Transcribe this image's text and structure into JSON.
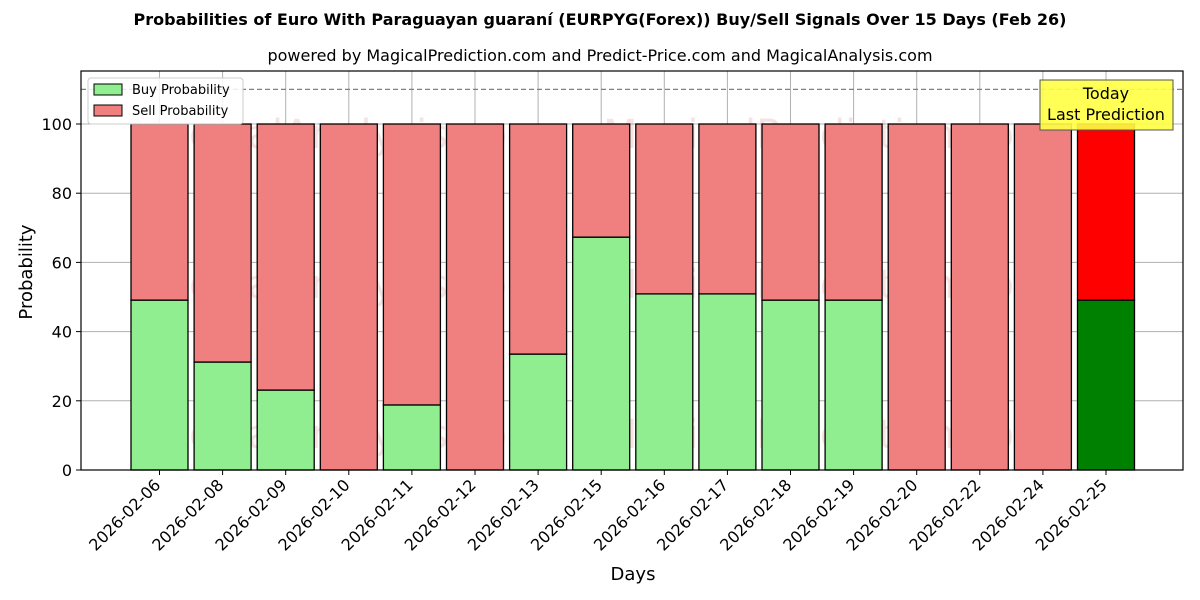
{
  "title": "Probabilities of Euro With Paraguayan guaraní (EURPYG(Forex)) Buy/Sell Signals Over 15 Days (Feb 26)",
  "subtitle": "powered by MagicalPrediction.com and Predict-Price.com and MagicalAnalysis.com",
  "watermarks": [
    "MagicalAnalysis.com",
    "MagicalPrediction.com"
  ],
  "annotation": {
    "line1": "Today",
    "line2": "Last Prediction"
  },
  "colors": {
    "buy": "#90ee90",
    "sell": "#f08080",
    "buy_today": "#008000",
    "sell_today": "#ff0000",
    "annotation_bg": "#ffff44"
  },
  "chart_data": {
    "type": "bar",
    "stacked": true,
    "title": "Probabilities of Euro With Paraguayan guaraní (EURPYG(Forex)) Buy/Sell Signals Over 15 Days (Feb 26)",
    "subtitle": "powered by MagicalPrediction.com and Predict-Price.com and MagicalAnalysis.com",
    "xlabel": "Days",
    "ylabel": "Probability",
    "ylim": [
      0,
      115
    ],
    "yticks": [
      0,
      20,
      40,
      60,
      80,
      100
    ],
    "grid": true,
    "legend_position": "upper left",
    "hline": {
      "y": 110,
      "style": "dashed"
    },
    "categories": [
      "2026-02-06",
      "2026-02-08",
      "2026-02-09",
      "2026-02-10",
      "2026-02-11",
      "2026-02-12",
      "2026-02-13",
      "2026-02-15",
      "2026-02-16",
      "2026-02-17",
      "2026-02-18",
      "2026-02-19",
      "2026-02-20",
      "2026-02-22",
      "2026-02-24",
      "2026-02-25"
    ],
    "series": [
      {
        "name": "Buy Probability",
        "values": [
          49.1,
          31.2,
          23.1,
          0,
          18.8,
          0,
          33.5,
          67.3,
          50.9,
          50.9,
          49.1,
          49.1,
          0,
          0,
          0,
          49.1
        ]
      },
      {
        "name": "Sell Probability",
        "values": [
          50.9,
          68.8,
          76.9,
          100,
          81.2,
          100,
          66.5,
          32.7,
          49.1,
          49.1,
          50.9,
          50.9,
          100,
          100,
          100,
          50.9
        ]
      }
    ]
  }
}
